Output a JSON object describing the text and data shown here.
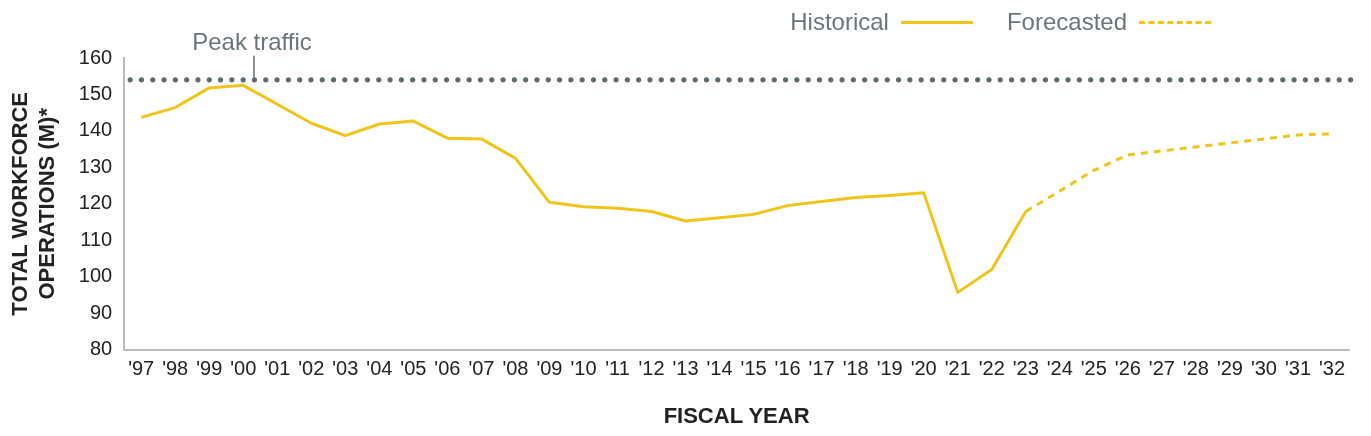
{
  "chart_data": {
    "type": "line",
    "xlabel": "FISCAL YEAR",
    "ylabel": "TOTAL WORKFORCE OPERATIONS (M)*",
    "categories": [
      "'97",
      "'98",
      "'99",
      "'00",
      "'01",
      "'02",
      "'03",
      "'04",
      "'05",
      "'06",
      "'07",
      "'08",
      "'09",
      "'10",
      "'11",
      "'12",
      "'13",
      "'14",
      "'15",
      "'16",
      "'17",
      "'18",
      "'19",
      "'20",
      "'21",
      "'22",
      "'23",
      "'24",
      "'25",
      "'26",
      "'27",
      "'28",
      "'29",
      "'30",
      "'31",
      "'32"
    ],
    "series": [
      {
        "name": "Historical",
        "color": "#f0c419",
        "line_style": "solid",
        "values": [
          143.7,
          146.4,
          151.8,
          152.5,
          147.3,
          142.1,
          138.7,
          141.9,
          142.7,
          138.0,
          137.8,
          132.5,
          120.4,
          119.2,
          118.8,
          117.9,
          115.3,
          116.2,
          117.1,
          119.5,
          120.6,
          121.7,
          122.3,
          123.0,
          95.7,
          102.0,
          117.9,
          null,
          null,
          null,
          null,
          null,
          null,
          null,
          null,
          null
        ]
      },
      {
        "name": "Forecasted",
        "color": "#f0c419",
        "line_style": "dashed",
        "values": [
          null,
          null,
          null,
          null,
          null,
          null,
          null,
          null,
          null,
          null,
          null,
          null,
          null,
          null,
          null,
          null,
          null,
          null,
          null,
          null,
          null,
          null,
          null,
          null,
          null,
          null,
          117.9,
          123.5,
          129.2,
          133.4,
          134.5,
          135.6,
          136.7,
          137.8,
          138.9,
          139.2
        ]
      }
    ],
    "ylim": [
      80,
      160
    ],
    "yticks": [
      80,
      90,
      100,
      110,
      120,
      130,
      140,
      150,
      160
    ],
    "ref_lines": [
      {
        "axis": "y",
        "value": 154,
        "label": "Peak traffic",
        "color": "#5f6b70",
        "line_style": "dotted"
      }
    ],
    "grid": false,
    "legend": "top right",
    "marker": "none"
  }
}
